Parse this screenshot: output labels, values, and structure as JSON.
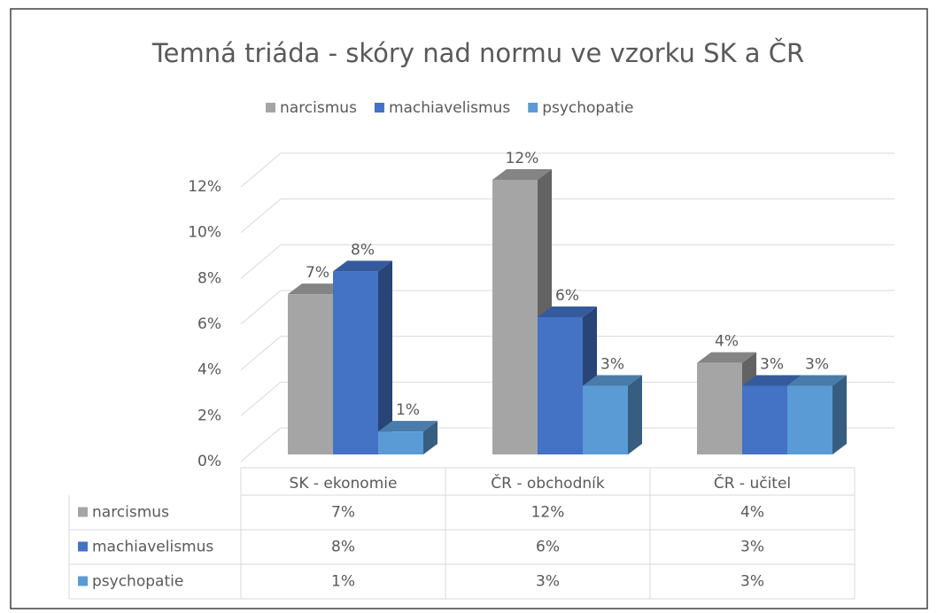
{
  "chart_data": {
    "type": "bar3d",
    "title": "Temná triáda - skóry nad normu ve vzorku SK a ČR",
    "categories": [
      "SK - ekonomie",
      "ČR - obchodník",
      "ČR - učitel"
    ],
    "series": [
      {
        "name": "narcismus",
        "color": "#a5a5a5",
        "values": [
          7,
          12,
          4
        ],
        "value_labels": [
          "7%",
          "12%",
          "4%"
        ]
      },
      {
        "name": "machiavelismus",
        "color": "#4472c4",
        "values": [
          8,
          6,
          3
        ],
        "value_labels": [
          "8%",
          "6%",
          "3%"
        ]
      },
      {
        "name": "psychopatie",
        "color": "#5b9bd5",
        "values": [
          1,
          3,
          3
        ],
        "value_labels": [
          "1%",
          "3%",
          "3%"
        ]
      }
    ],
    "ylim": [
      0,
      12
    ],
    "yticks": [
      {
        "value": 0,
        "label": "0%"
      },
      {
        "value": 2,
        "label": "2%"
      },
      {
        "value": 4,
        "label": "4%"
      },
      {
        "value": 6,
        "label": "6%"
      },
      {
        "value": 8,
        "label": "8%"
      },
      {
        "value": 10,
        "label": "10%"
      },
      {
        "value": 12,
        "label": "12%"
      }
    ],
    "grid": true,
    "legend": "top",
    "data_table": true
  }
}
